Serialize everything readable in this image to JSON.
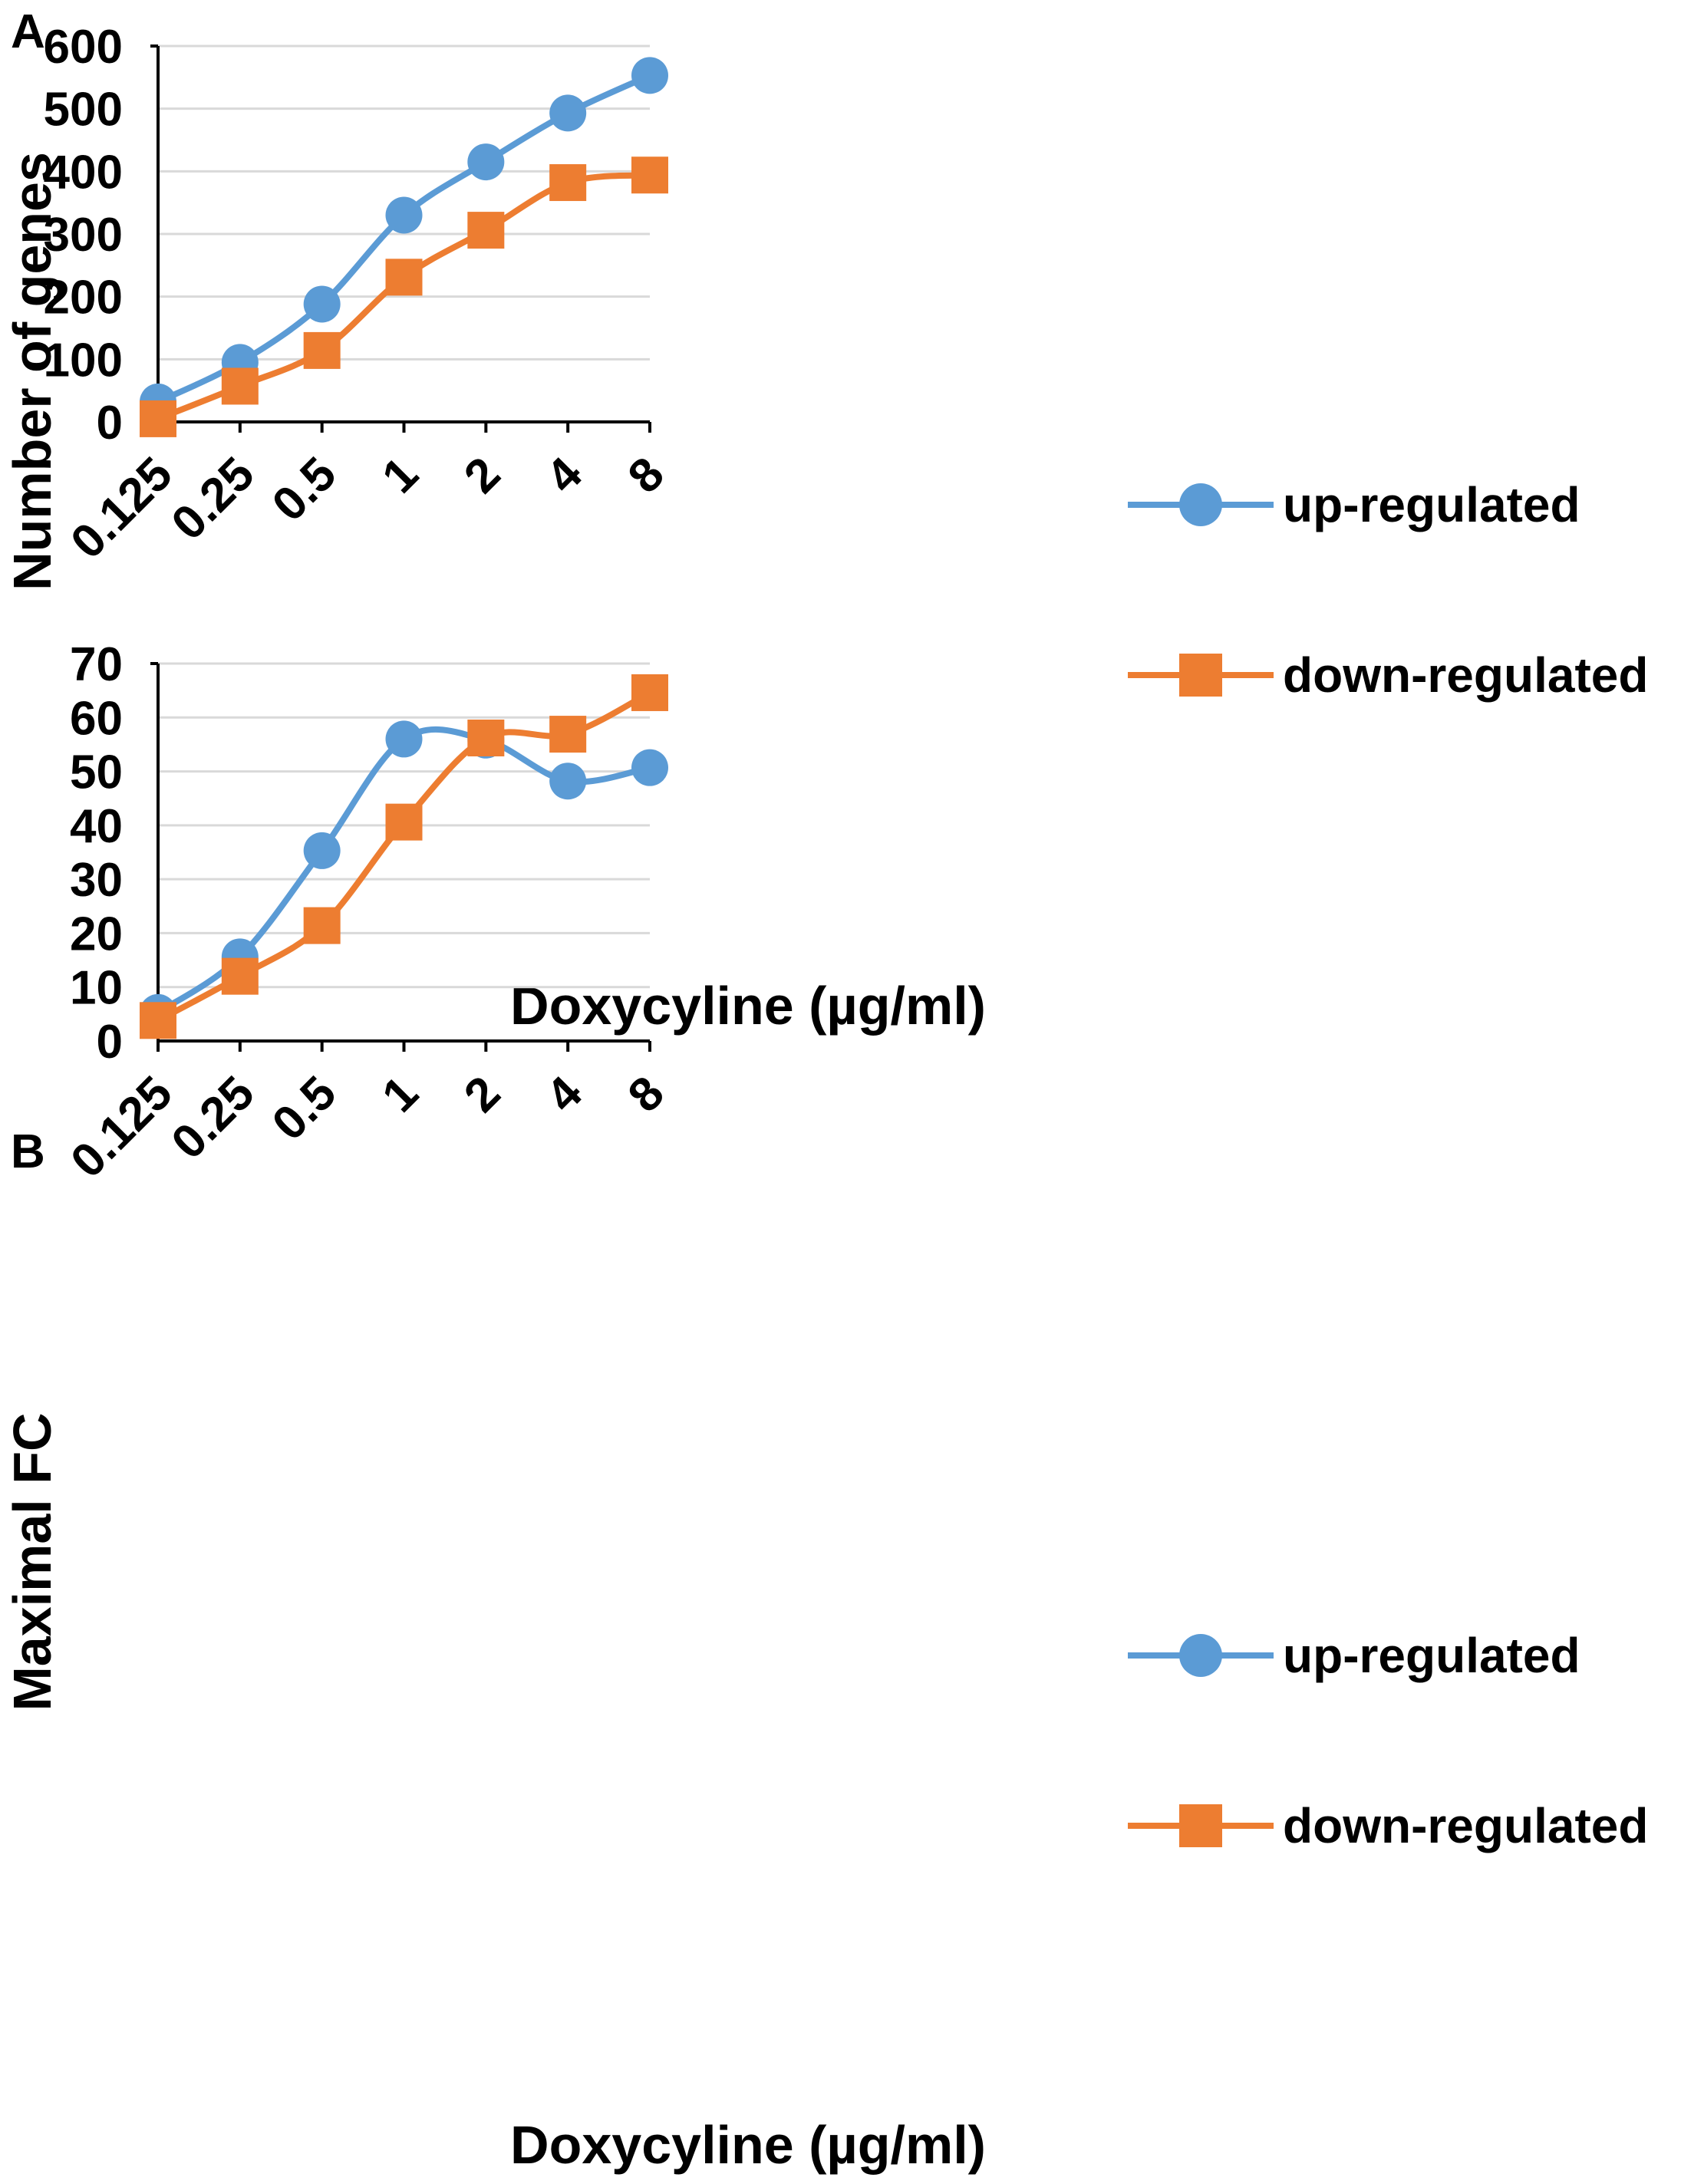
{
  "figure": {
    "colors": {
      "up": "#5B9BD5",
      "down": "#ED7D31",
      "grid": "#D9D9D9",
      "axis": "#000000"
    }
  },
  "chart_data": [
    {
      "panel": "A",
      "type": "line",
      "categories": [
        "0.125",
        "0.25",
        "0.5",
        "1",
        "2",
        "4",
        "8"
      ],
      "series": [
        {
          "name": "up-regulated",
          "marker": "circle",
          "values": [
            32,
            95,
            188,
            330,
            415,
            493,
            553
          ]
        },
        {
          "name": "down-regulated",
          "marker": "square",
          "values": [
            5,
            57,
            114,
            231,
            306,
            382,
            394
          ]
        }
      ],
      "title": "",
      "xlabel": "Doxycyline (µg/ml)",
      "ylabel": "Number of genes",
      "ylim": [
        0,
        600
      ],
      "yticks": [
        0,
        100,
        200,
        300,
        400,
        500,
        600
      ],
      "grid": true,
      "legend": "right"
    },
    {
      "panel": "B",
      "type": "line",
      "categories": [
        "0.125",
        "0.25",
        "0.5",
        "1",
        "2",
        "4",
        "8"
      ],
      "series": [
        {
          "name": "up-regulated",
          "marker": "circle",
          "values": [
            5.3,
            15.6,
            35.3,
            56.0,
            55.8,
            48.2,
            50.7
          ]
        },
        {
          "name": "down-regulated",
          "marker": "square",
          "values": [
            3.8,
            12.0,
            21.4,
            40.6,
            56.2,
            56.9,
            64.6
          ]
        }
      ],
      "title": "",
      "xlabel": "Doxycyline (µg/ml)",
      "ylabel": "Maximal FC",
      "ylim": [
        0,
        70
      ],
      "yticks": [
        0,
        10,
        20,
        30,
        40,
        50,
        60,
        70
      ],
      "grid": true,
      "legend": "right"
    }
  ]
}
